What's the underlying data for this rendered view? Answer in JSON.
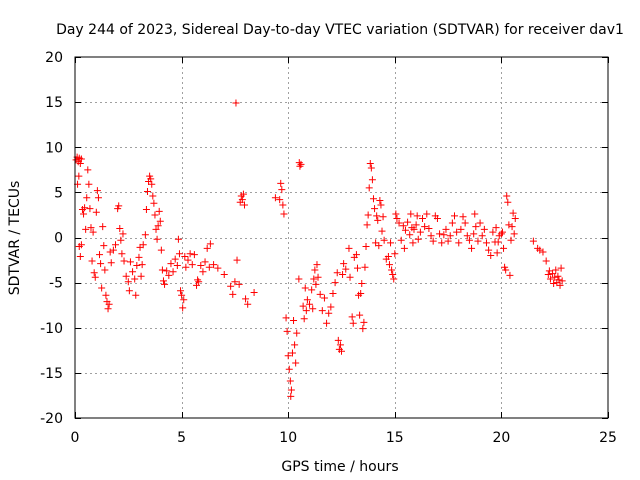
{
  "chart_data": {
    "type": "scatter",
    "title": "Day 244 of 2023, Sidereal Day-to-day VTEC variation (SDTVAR) for receiver dav1",
    "xlabel": "GPS time / hours",
    "ylabel": "SDTVAR / TECUs",
    "xlim": [
      0,
      25
    ],
    "ylim": [
      -20,
      20
    ],
    "xticks": [
      0,
      5,
      10,
      15,
      20,
      25
    ],
    "yticks": [
      -20,
      -15,
      -10,
      -5,
      0,
      5,
      10,
      15,
      20
    ],
    "xtick_labels": [
      "0",
      "5",
      "10",
      "15",
      "20",
      "25"
    ],
    "ytick_labels": [
      "-20",
      "-15",
      "-10",
      "-5",
      "0",
      "5",
      "10",
      "15",
      "20"
    ],
    "grid": true,
    "marker": "+",
    "series": [
      {
        "name": "SDTVAR",
        "color": "#ff0000",
        "points": [
          [
            0.05,
            8.6
          ],
          [
            0.1,
            8.9
          ],
          [
            0.15,
            8.4
          ],
          [
            0.2,
            8.8
          ],
          [
            0.25,
            8.2
          ],
          [
            0.3,
            8.7
          ],
          [
            0.12,
            5.9
          ],
          [
            0.18,
            6.8
          ],
          [
            0.2,
            -1.0
          ],
          [
            0.25,
            -2.1
          ],
          [
            0.3,
            -0.8
          ],
          [
            0.35,
            3.1
          ],
          [
            0.4,
            2.6
          ],
          [
            0.45,
            3.3
          ],
          [
            0.5,
            0.9
          ],
          [
            0.55,
            4.4
          ],
          [
            0.6,
            7.5
          ],
          [
            0.65,
            5.9
          ],
          [
            0.7,
            3.2
          ],
          [
            0.75,
            1.1
          ],
          [
            0.8,
            -2.6
          ],
          [
            0.85,
            0.6
          ],
          [
            0.9,
            -3.9
          ],
          [
            0.95,
            -4.4
          ],
          [
            1.0,
            2.8
          ],
          [
            1.05,
            5.2
          ],
          [
            1.1,
            4.4
          ],
          [
            1.15,
            -1.9
          ],
          [
            1.2,
            -2.9
          ],
          [
            1.25,
            -5.6
          ],
          [
            1.3,
            1.2
          ],
          [
            1.35,
            -0.9
          ],
          [
            1.4,
            -3.6
          ],
          [
            1.45,
            -6.4
          ],
          [
            1.5,
            -7.1
          ],
          [
            1.55,
            -7.9
          ],
          [
            1.6,
            -7.4
          ],
          [
            1.65,
            -1.6
          ],
          [
            1.7,
            -2.8
          ],
          [
            1.8,
            -1.4
          ],
          [
            1.9,
            -0.8
          ],
          [
            2.0,
            3.2
          ],
          [
            2.05,
            3.5
          ],
          [
            2.1,
            1.0
          ],
          [
            2.15,
            -0.3
          ],
          [
            2.2,
            -1.8
          ],
          [
            2.25,
            0.4
          ],
          [
            2.3,
            -2.6
          ],
          [
            2.4,
            -4.3
          ],
          [
            2.5,
            -4.9
          ],
          [
            2.55,
            -5.9
          ],
          [
            2.6,
            -2.7
          ],
          [
            2.7,
            -3.8
          ],
          [
            2.8,
            -4.6
          ],
          [
            2.85,
            -6.4
          ],
          [
            2.9,
            -3.1
          ],
          [
            3.0,
            -2.2
          ],
          [
            3.05,
            -1.1
          ],
          [
            3.1,
            -4.3
          ],
          [
            3.15,
            -3.0
          ],
          [
            3.2,
            -0.8
          ],
          [
            3.3,
            0.3
          ],
          [
            3.35,
            3.1
          ],
          [
            3.4,
            5.1
          ],
          [
            3.45,
            6.2
          ],
          [
            3.5,
            6.8
          ],
          [
            3.55,
            6.5
          ],
          [
            3.6,
            5.9
          ],
          [
            3.65,
            4.6
          ],
          [
            3.7,
            3.8
          ],
          [
            3.75,
            2.5
          ],
          [
            3.8,
            0.9
          ],
          [
            3.85,
            -0.2
          ],
          [
            3.9,
            1.3
          ],
          [
            3.95,
            2.9
          ],
          [
            4.0,
            1.8
          ],
          [
            4.05,
            -1.4
          ],
          [
            4.1,
            -3.6
          ],
          [
            4.15,
            -4.8
          ],
          [
            4.2,
            -5.2
          ],
          [
            4.3,
            -3.7
          ],
          [
            4.4,
            -4.2
          ],
          [
            4.5,
            -2.9
          ],
          [
            4.6,
            -3.8
          ],
          [
            4.7,
            -2.4
          ],
          [
            4.8,
            -3.1
          ],
          [
            4.85,
            -0.2
          ],
          [
            4.9,
            -1.8
          ],
          [
            4.95,
            -5.9
          ],
          [
            5.0,
            -6.4
          ],
          [
            5.05,
            -7.8
          ],
          [
            5.1,
            -6.9
          ],
          [
            5.15,
            -2.1
          ],
          [
            5.2,
            -3.3
          ],
          [
            5.3,
            -2.5
          ],
          [
            5.4,
            -1.8
          ],
          [
            5.5,
            -3.0
          ],
          [
            5.6,
            -1.9
          ],
          [
            5.7,
            -5.3
          ],
          [
            5.75,
            -4.7
          ],
          [
            5.8,
            -4.9
          ],
          [
            5.9,
            -3.1
          ],
          [
            6.0,
            -3.8
          ],
          [
            6.1,
            -2.7
          ],
          [
            6.2,
            -1.2
          ],
          [
            6.3,
            -3.3
          ],
          [
            6.35,
            -0.7
          ],
          [
            6.5,
            -3.0
          ],
          [
            6.7,
            -3.4
          ],
          [
            7.0,
            -4.1
          ],
          [
            7.3,
            -5.4
          ],
          [
            7.4,
            -6.3
          ],
          [
            7.5,
            -4.9
          ],
          [
            7.6,
            -2.5
          ],
          [
            7.7,
            -5.2
          ],
          [
            7.75,
            3.9
          ],
          [
            7.8,
            4.6
          ],
          [
            7.85,
            4.2
          ],
          [
            7.9,
            4.8
          ],
          [
            7.95,
            3.6
          ],
          [
            8.0,
            -6.8
          ],
          [
            8.1,
            -7.4
          ],
          [
            8.4,
            -6.1
          ],
          [
            7.55,
            14.9
          ],
          [
            9.4,
            4.4
          ],
          [
            9.6,
            4.2
          ],
          [
            9.65,
            6.0
          ],
          [
            9.7,
            5.3
          ],
          [
            9.75,
            3.6
          ],
          [
            9.8,
            2.6
          ],
          [
            9.9,
            -8.9
          ],
          [
            9.95,
            -10.4
          ],
          [
            10.0,
            -13.1
          ],
          [
            10.05,
            -14.6
          ],
          [
            10.1,
            -15.9
          ],
          [
            10.12,
            -17.6
          ],
          [
            10.15,
            -16.9
          ],
          [
            10.2,
            -12.8
          ],
          [
            10.25,
            -9.2
          ],
          [
            10.3,
            -11.9
          ],
          [
            10.35,
            -13.9
          ],
          [
            10.4,
            -10.6
          ],
          [
            10.5,
            -4.6
          ],
          [
            10.52,
            8.3
          ],
          [
            10.55,
            7.9
          ],
          [
            10.6,
            8.1
          ],
          [
            10.7,
            -7.6
          ],
          [
            10.75,
            -9.0
          ],
          [
            10.8,
            -5.6
          ],
          [
            10.85,
            -8.1
          ],
          [
            10.9,
            -6.9
          ],
          [
            11.0,
            -7.4
          ],
          [
            11.1,
            -5.8
          ],
          [
            11.15,
            -7.9
          ],
          [
            11.2,
            -4.6
          ],
          [
            11.25,
            -3.6
          ],
          [
            11.3,
            -5.2
          ],
          [
            11.35,
            -3.0
          ],
          [
            11.4,
            -4.4
          ],
          [
            11.5,
            -6.3
          ],
          [
            11.6,
            -8.1
          ],
          [
            11.7,
            -6.7
          ],
          [
            11.8,
            -9.5
          ],
          [
            11.9,
            -8.4
          ],
          [
            12.0,
            -7.7
          ],
          [
            12.1,
            -6.2
          ],
          [
            12.2,
            -5.0
          ],
          [
            12.3,
            -3.9
          ],
          [
            12.35,
            -11.4
          ],
          [
            12.4,
            -12.4
          ],
          [
            12.45,
            -11.9
          ],
          [
            12.5,
            -12.6
          ],
          [
            12.55,
            -4.1
          ],
          [
            12.6,
            -2.9
          ],
          [
            12.7,
            -3.5
          ],
          [
            12.85,
            -1.2
          ],
          [
            12.9,
            -4.4
          ],
          [
            13.0,
            -8.8
          ],
          [
            13.05,
            -9.5
          ],
          [
            13.1,
            -2.2
          ],
          [
            13.2,
            -1.9
          ],
          [
            13.25,
            -3.4
          ],
          [
            13.3,
            -6.4
          ],
          [
            13.35,
            -8.6
          ],
          [
            13.4,
            -6.2
          ],
          [
            13.45,
            -5.1
          ],
          [
            13.5,
            -10.1
          ],
          [
            13.55,
            -9.4
          ],
          [
            13.6,
            -3.3
          ],
          [
            13.65,
            -1.0
          ],
          [
            13.7,
            1.4
          ],
          [
            13.75,
            2.5
          ],
          [
            13.8,
            5.5
          ],
          [
            13.85,
            8.2
          ],
          [
            13.9,
            7.7
          ],
          [
            13.95,
            6.4
          ],
          [
            14.0,
            4.3
          ],
          [
            14.05,
            3.2
          ],
          [
            14.1,
            -0.6
          ],
          [
            14.15,
            2.4
          ],
          [
            14.2,
            1.9
          ],
          [
            14.25,
            -0.9
          ],
          [
            14.3,
            4.1
          ],
          [
            14.35,
            3.6
          ],
          [
            14.4,
            0.7
          ],
          [
            14.45,
            2.3
          ],
          [
            14.5,
            -0.3
          ],
          [
            14.6,
            -2.4
          ],
          [
            14.7,
            -2.1
          ],
          [
            14.75,
            -3.0
          ],
          [
            14.8,
            -0.6
          ],
          [
            14.85,
            -3.6
          ],
          [
            14.9,
            -4.1
          ],
          [
            14.95,
            -4.6
          ],
          [
            15.0,
            -1.8
          ],
          [
            15.05,
            2.6
          ],
          [
            15.1,
            2.1
          ],
          [
            15.2,
            1.6
          ],
          [
            15.3,
            -0.3
          ],
          [
            15.4,
            1.3
          ],
          [
            15.45,
            -1.2
          ],
          [
            15.5,
            0.8
          ],
          [
            15.6,
            1.7
          ],
          [
            15.7,
            0.3
          ],
          [
            15.75,
            2.6
          ],
          [
            15.8,
            1.1
          ],
          [
            15.85,
            -0.6
          ],
          [
            15.9,
            0.9
          ],
          [
            16.0,
            1.4
          ],
          [
            16.05,
            2.4
          ],
          [
            16.1,
            -0.2
          ],
          [
            16.2,
            0.6
          ],
          [
            16.3,
            2.1
          ],
          [
            16.4,
            1.2
          ],
          [
            16.5,
            2.6
          ],
          [
            16.6,
            1.0
          ],
          [
            16.7,
            0.2
          ],
          [
            16.8,
            -0.4
          ],
          [
            16.9,
            2.4
          ],
          [
            17.0,
            2.1
          ],
          [
            17.1,
            0.4
          ],
          [
            17.2,
            -0.6
          ],
          [
            17.3,
            0.3
          ],
          [
            17.4,
            0.9
          ],
          [
            17.5,
            -0.4
          ],
          [
            17.6,
            0.2
          ],
          [
            17.7,
            1.6
          ],
          [
            17.8,
            2.4
          ],
          [
            17.9,
            0.6
          ],
          [
            18.0,
            -0.6
          ],
          [
            18.1,
            0.9
          ],
          [
            18.2,
            2.3
          ],
          [
            18.3,
            1.6
          ],
          [
            18.4,
            0.2
          ],
          [
            18.5,
            -0.3
          ],
          [
            18.6,
            -1.2
          ],
          [
            18.7,
            0.4
          ],
          [
            18.75,
            2.6
          ],
          [
            18.8,
            1.2
          ],
          [
            18.9,
            -0.4
          ],
          [
            19.0,
            1.6
          ],
          [
            19.1,
            0.2
          ],
          [
            19.2,
            0.9
          ],
          [
            19.3,
            -0.6
          ],
          [
            19.4,
            -1.4
          ],
          [
            19.5,
            -2.0
          ],
          [
            19.6,
            0.6
          ],
          [
            19.7,
            -0.5
          ],
          [
            19.75,
            1.1
          ],
          [
            19.8,
            -1.7
          ],
          [
            19.85,
            -0.5
          ],
          [
            19.9,
            0.2
          ],
          [
            20.0,
            0.4
          ],
          [
            20.05,
            0.6
          ],
          [
            20.1,
            -1.2
          ],
          [
            20.15,
            -3.3
          ],
          [
            20.2,
            -3.6
          ],
          [
            20.25,
            4.6
          ],
          [
            20.3,
            3.9
          ],
          [
            20.35,
            1.4
          ],
          [
            20.4,
            -4.2
          ],
          [
            20.45,
            -0.3
          ],
          [
            20.5,
            1.2
          ],
          [
            20.55,
            2.7
          ],
          [
            20.6,
            0.4
          ],
          [
            20.65,
            2.1
          ],
          [
            21.5,
            -0.4
          ],
          [
            21.7,
            -1.2
          ],
          [
            21.8,
            -1.4
          ],
          [
            21.95,
            -1.6
          ],
          [
            22.1,
            -2.6
          ],
          [
            22.2,
            -4.1
          ],
          [
            22.25,
            -3.7
          ],
          [
            22.3,
            -4.6
          ],
          [
            22.4,
            -4.0
          ],
          [
            22.45,
            -5.1
          ],
          [
            22.5,
            -4.4
          ],
          [
            22.55,
            -3.6
          ],
          [
            22.6,
            -5.0
          ],
          [
            22.65,
            -4.3
          ],
          [
            22.7,
            -4.7
          ],
          [
            22.75,
            -5.3
          ],
          [
            22.8,
            -3.4
          ],
          [
            22.85,
            -4.8
          ]
        ]
      }
    ]
  }
}
